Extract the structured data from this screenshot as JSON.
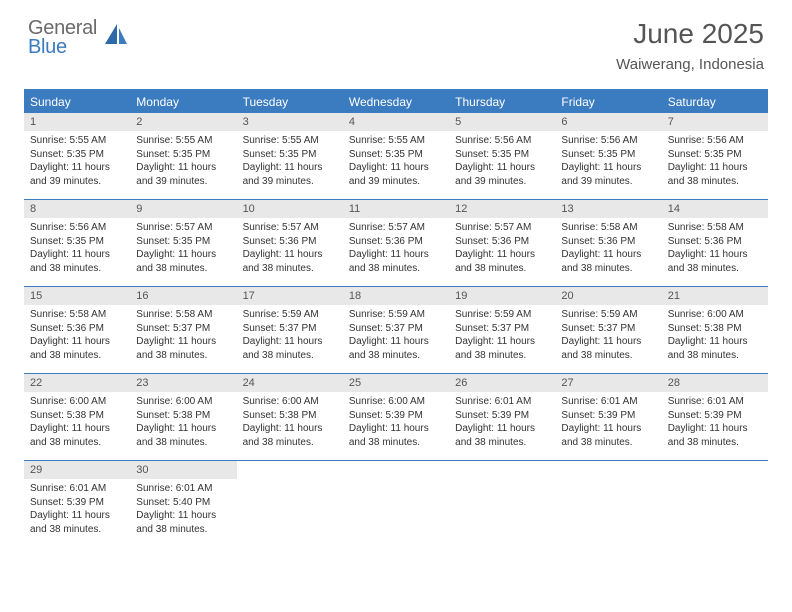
{
  "logo": {
    "general": "General",
    "blue": "Blue"
  },
  "title": "June 2025",
  "location": "Waiwerang, Indonesia",
  "colors": {
    "accent": "#3b7bbf",
    "header_text": "#ffffff",
    "daynum_bg": "#e8e8e8",
    "body_text": "#333333",
    "title_text": "#555555"
  },
  "day_headers": [
    "Sunday",
    "Monday",
    "Tuesday",
    "Wednesday",
    "Thursday",
    "Friday",
    "Saturday"
  ],
  "weeks": [
    [
      {
        "n": "1",
        "sr": "Sunrise: 5:55 AM",
        "ss": "Sunset: 5:35 PM",
        "d1": "Daylight: 11 hours",
        "d2": "and 39 minutes."
      },
      {
        "n": "2",
        "sr": "Sunrise: 5:55 AM",
        "ss": "Sunset: 5:35 PM",
        "d1": "Daylight: 11 hours",
        "d2": "and 39 minutes."
      },
      {
        "n": "3",
        "sr": "Sunrise: 5:55 AM",
        "ss": "Sunset: 5:35 PM",
        "d1": "Daylight: 11 hours",
        "d2": "and 39 minutes."
      },
      {
        "n": "4",
        "sr": "Sunrise: 5:55 AM",
        "ss": "Sunset: 5:35 PM",
        "d1": "Daylight: 11 hours",
        "d2": "and 39 minutes."
      },
      {
        "n": "5",
        "sr": "Sunrise: 5:56 AM",
        "ss": "Sunset: 5:35 PM",
        "d1": "Daylight: 11 hours",
        "d2": "and 39 minutes."
      },
      {
        "n": "6",
        "sr": "Sunrise: 5:56 AM",
        "ss": "Sunset: 5:35 PM",
        "d1": "Daylight: 11 hours",
        "d2": "and 39 minutes."
      },
      {
        "n": "7",
        "sr": "Sunrise: 5:56 AM",
        "ss": "Sunset: 5:35 PM",
        "d1": "Daylight: 11 hours",
        "d2": "and 38 minutes."
      }
    ],
    [
      {
        "n": "8",
        "sr": "Sunrise: 5:56 AM",
        "ss": "Sunset: 5:35 PM",
        "d1": "Daylight: 11 hours",
        "d2": "and 38 minutes."
      },
      {
        "n": "9",
        "sr": "Sunrise: 5:57 AM",
        "ss": "Sunset: 5:35 PM",
        "d1": "Daylight: 11 hours",
        "d2": "and 38 minutes."
      },
      {
        "n": "10",
        "sr": "Sunrise: 5:57 AM",
        "ss": "Sunset: 5:36 PM",
        "d1": "Daylight: 11 hours",
        "d2": "and 38 minutes."
      },
      {
        "n": "11",
        "sr": "Sunrise: 5:57 AM",
        "ss": "Sunset: 5:36 PM",
        "d1": "Daylight: 11 hours",
        "d2": "and 38 minutes."
      },
      {
        "n": "12",
        "sr": "Sunrise: 5:57 AM",
        "ss": "Sunset: 5:36 PM",
        "d1": "Daylight: 11 hours",
        "d2": "and 38 minutes."
      },
      {
        "n": "13",
        "sr": "Sunrise: 5:58 AM",
        "ss": "Sunset: 5:36 PM",
        "d1": "Daylight: 11 hours",
        "d2": "and 38 minutes."
      },
      {
        "n": "14",
        "sr": "Sunrise: 5:58 AM",
        "ss": "Sunset: 5:36 PM",
        "d1": "Daylight: 11 hours",
        "d2": "and 38 minutes."
      }
    ],
    [
      {
        "n": "15",
        "sr": "Sunrise: 5:58 AM",
        "ss": "Sunset: 5:36 PM",
        "d1": "Daylight: 11 hours",
        "d2": "and 38 minutes."
      },
      {
        "n": "16",
        "sr": "Sunrise: 5:58 AM",
        "ss": "Sunset: 5:37 PM",
        "d1": "Daylight: 11 hours",
        "d2": "and 38 minutes."
      },
      {
        "n": "17",
        "sr": "Sunrise: 5:59 AM",
        "ss": "Sunset: 5:37 PM",
        "d1": "Daylight: 11 hours",
        "d2": "and 38 minutes."
      },
      {
        "n": "18",
        "sr": "Sunrise: 5:59 AM",
        "ss": "Sunset: 5:37 PM",
        "d1": "Daylight: 11 hours",
        "d2": "and 38 minutes."
      },
      {
        "n": "19",
        "sr": "Sunrise: 5:59 AM",
        "ss": "Sunset: 5:37 PM",
        "d1": "Daylight: 11 hours",
        "d2": "and 38 minutes."
      },
      {
        "n": "20",
        "sr": "Sunrise: 5:59 AM",
        "ss": "Sunset: 5:37 PM",
        "d1": "Daylight: 11 hours",
        "d2": "and 38 minutes."
      },
      {
        "n": "21",
        "sr": "Sunrise: 6:00 AM",
        "ss": "Sunset: 5:38 PM",
        "d1": "Daylight: 11 hours",
        "d2": "and 38 minutes."
      }
    ],
    [
      {
        "n": "22",
        "sr": "Sunrise: 6:00 AM",
        "ss": "Sunset: 5:38 PM",
        "d1": "Daylight: 11 hours",
        "d2": "and 38 minutes."
      },
      {
        "n": "23",
        "sr": "Sunrise: 6:00 AM",
        "ss": "Sunset: 5:38 PM",
        "d1": "Daylight: 11 hours",
        "d2": "and 38 minutes."
      },
      {
        "n": "24",
        "sr": "Sunrise: 6:00 AM",
        "ss": "Sunset: 5:38 PM",
        "d1": "Daylight: 11 hours",
        "d2": "and 38 minutes."
      },
      {
        "n": "25",
        "sr": "Sunrise: 6:00 AM",
        "ss": "Sunset: 5:39 PM",
        "d1": "Daylight: 11 hours",
        "d2": "and 38 minutes."
      },
      {
        "n": "26",
        "sr": "Sunrise: 6:01 AM",
        "ss": "Sunset: 5:39 PM",
        "d1": "Daylight: 11 hours",
        "d2": "and 38 minutes."
      },
      {
        "n": "27",
        "sr": "Sunrise: 6:01 AM",
        "ss": "Sunset: 5:39 PM",
        "d1": "Daylight: 11 hours",
        "d2": "and 38 minutes."
      },
      {
        "n": "28",
        "sr": "Sunrise: 6:01 AM",
        "ss": "Sunset: 5:39 PM",
        "d1": "Daylight: 11 hours",
        "d2": "and 38 minutes."
      }
    ],
    [
      {
        "n": "29",
        "sr": "Sunrise: 6:01 AM",
        "ss": "Sunset: 5:39 PM",
        "d1": "Daylight: 11 hours",
        "d2": "and 38 minutes."
      },
      {
        "n": "30",
        "sr": "Sunrise: 6:01 AM",
        "ss": "Sunset: 5:40 PM",
        "d1": "Daylight: 11 hours",
        "d2": "and 38 minutes."
      },
      null,
      null,
      null,
      null,
      null
    ]
  ]
}
